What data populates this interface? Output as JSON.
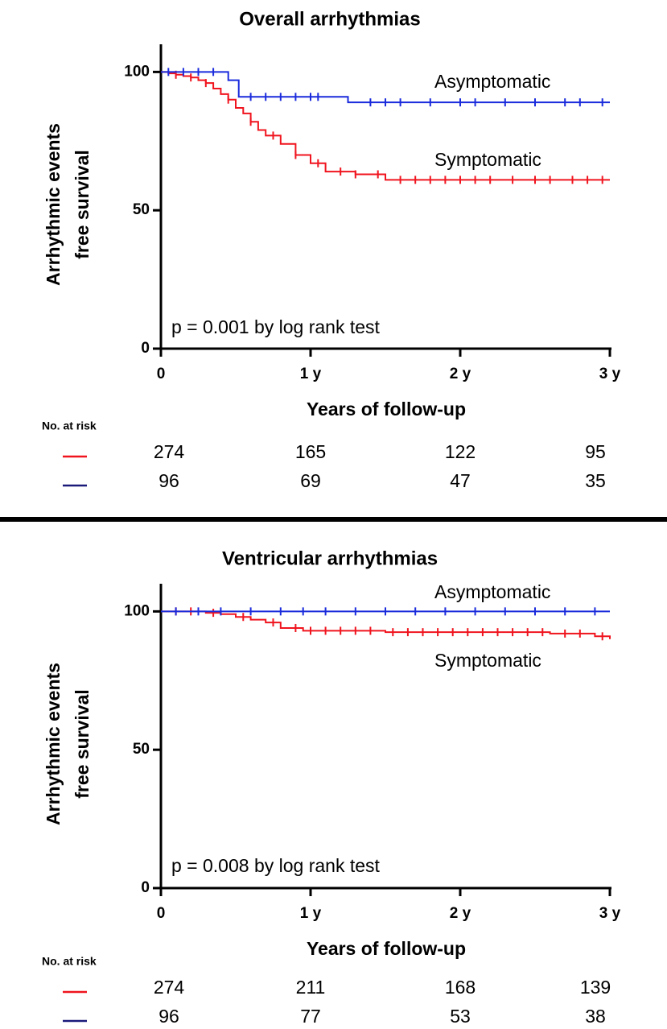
{
  "chart_data": [
    {
      "type": "line",
      "step": true,
      "title": "Overall arrhythmias",
      "ylabel": [
        "Arrhythmic events",
        "free survival"
      ],
      "xlabel": "Years of follow-up",
      "xlim": [
        0,
        3
      ],
      "ylim": [
        0,
        110
      ],
      "xticks": [
        0,
        {
          "value": 1,
          "label": "1 y"
        },
        {
          "value": 2,
          "label": "2 y"
        },
        {
          "value": 3,
          "label": "3 y"
        }
      ],
      "yticks": [
        0,
        50,
        100
      ],
      "annotations": [
        "Asymptomatic",
        "Symptomatic",
        "p = 0.001 by log rank test"
      ],
      "risk_label": "No. at risk",
      "risk_times": [
        0,
        1,
        2,
        3
      ],
      "series": [
        {
          "name": "Symptomatic",
          "color": "#f0141e",
          "x": [
            0,
            0.05,
            0.1,
            0.15,
            0.2,
            0.25,
            0.3,
            0.35,
            0.4,
            0.45,
            0.5,
            0.55,
            0.6,
            0.65,
            0.7,
            0.8,
            0.9,
            1.0,
            1.1,
            1.3,
            1.5,
            3.0
          ],
          "values": [
            100,
            99.5,
            99,
            98.5,
            98,
            97,
            96,
            94,
            92,
            90,
            87,
            85,
            82,
            79,
            77,
            74,
            70,
            67,
            64,
            63,
            61,
            61
          ],
          "censored": [
            0.1,
            0.2,
            0.3,
            0.45,
            0.6,
            0.75,
            0.9,
            1.05,
            1.2,
            1.3,
            1.45,
            1.6,
            1.7,
            1.8,
            1.9,
            2.0,
            2.1,
            2.2,
            2.35,
            2.5,
            2.6,
            2.75,
            2.85,
            2.95
          ],
          "at_risk": [
            274,
            165,
            122,
            95
          ]
        },
        {
          "name": "Asymptomatic",
          "color": "#1a2bdc",
          "x": [
            0,
            0.45,
            0.52,
            1.25,
            3.0
          ],
          "values": [
            100,
            97,
            91,
            89,
            89
          ],
          "censored": [
            0.05,
            0.15,
            0.25,
            0.35,
            0.6,
            0.7,
            0.8,
            0.9,
            1.0,
            1.05,
            1.4,
            1.5,
            1.6,
            1.8,
            2.0,
            2.1,
            2.3,
            2.5,
            2.7,
            2.8,
            2.95
          ],
          "at_risk": [
            96,
            69,
            47,
            35
          ]
        }
      ]
    },
    {
      "type": "line",
      "step": true,
      "title": "Ventricular arrhythmias",
      "ylabel": [
        "Arrhythmic events",
        "free survival"
      ],
      "xlabel": "Years of follow-up",
      "xlim": [
        0,
        3
      ],
      "ylim": [
        0,
        110
      ],
      "xticks": [
        0,
        {
          "value": 1,
          "label": "1 y"
        },
        {
          "value": 2,
          "label": "2 y"
        },
        {
          "value": 3,
          "label": "3 y"
        }
      ],
      "yticks": [
        0,
        50,
        100
      ],
      "annotations": [
        "Asymptomatic",
        "Symptomatic",
        "p = 0.008 by log rank test"
      ],
      "risk_label": "No. at risk",
      "risk_times": [
        0,
        1,
        2,
        3
      ],
      "series": [
        {
          "name": "Symptomatic",
          "color": "#f0141e",
          "x": [
            0,
            0.3,
            0.4,
            0.5,
            0.6,
            0.7,
            0.8,
            0.95,
            1.5,
            2.6,
            2.9,
            3.0
          ],
          "values": [
            100,
            99.5,
            99,
            98,
            97,
            96,
            94,
            93,
            92.5,
            92,
            91,
            90
          ],
          "censored": [
            0.1,
            0.2,
            0.35,
            0.55,
            0.75,
            0.9,
            1.0,
            1.1,
            1.2,
            1.3,
            1.4,
            1.55,
            1.65,
            1.75,
            1.85,
            1.95,
            2.05,
            2.15,
            2.25,
            2.35,
            2.45,
            2.55,
            2.7,
            2.8,
            2.95
          ],
          "at_risk": [
            274,
            211,
            168,
            139
          ]
        },
        {
          "name": "Asymptomatic",
          "color": "#1a2bdc",
          "x": [
            0,
            3.0
          ],
          "values": [
            100,
            100
          ],
          "censored": [
            0.1,
            0.25,
            0.4,
            0.6,
            0.8,
            0.95,
            1.1,
            1.3,
            1.5,
            1.7,
            1.9,
            2.1,
            2.3,
            2.5,
            2.7,
            2.9
          ],
          "at_risk": [
            96,
            77,
            53,
            38
          ]
        }
      ]
    }
  ]
}
